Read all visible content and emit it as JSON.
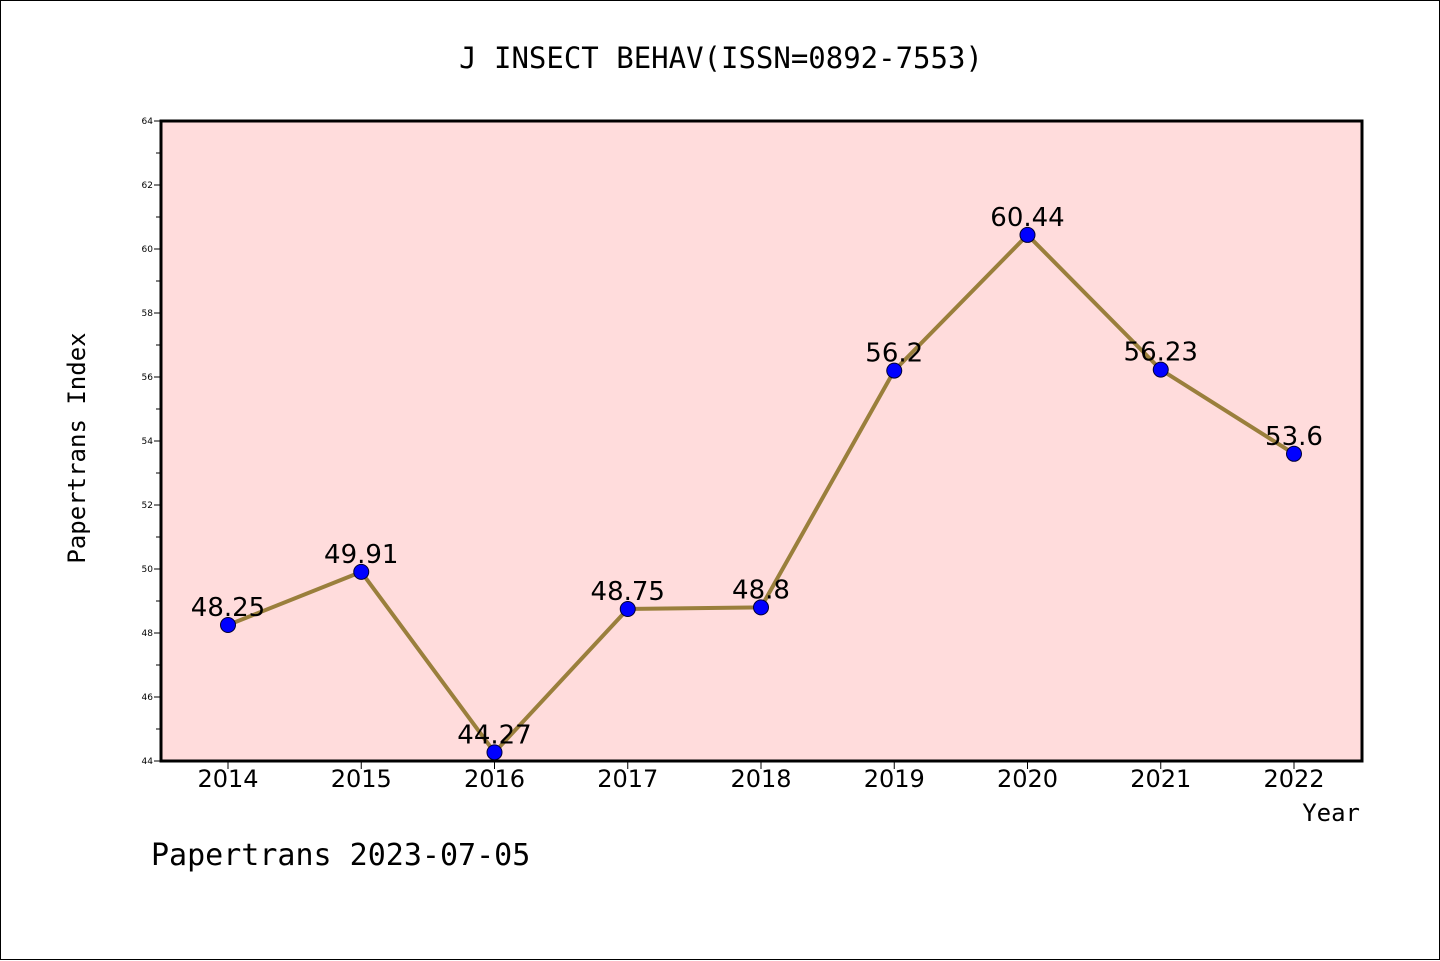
{
  "chart_data": {
    "type": "line",
    "title": "J INSECT BEHAV(ISSN=0892-7553)",
    "xlabel": "Year",
    "ylabel": "Papertrans Index",
    "categories": [
      "2014",
      "2015",
      "2016",
      "2017",
      "2018",
      "2019",
      "2020",
      "2021",
      "2022"
    ],
    "values": [
      48.25,
      49.91,
      44.27,
      48.75,
      48.8,
      56.2,
      60.44,
      56.23,
      53.6
    ],
    "data_labels": [
      "48.25",
      "49.91",
      "44.27",
      "48.75",
      "48.8",
      "56.2",
      "60.44",
      "56.23",
      "53.6"
    ],
    "ylim": [
      44,
      64
    ],
    "yticks": [
      "44",
      "46",
      "48",
      "50",
      "52",
      "54",
      "56",
      "58",
      "60",
      "62",
      "64"
    ],
    "grid": false,
    "colors": {
      "plot_background": "#ffdcdc",
      "line": "#9a7f3c",
      "marker": "#0000ff",
      "marker_edge": "#000033"
    }
  },
  "footer": "Papertrans 2023-07-05"
}
